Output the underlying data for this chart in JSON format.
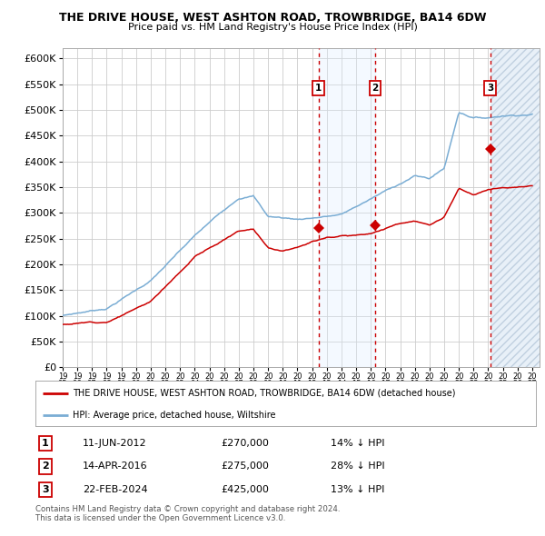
{
  "title": "THE DRIVE HOUSE, WEST ASHTON ROAD, TROWBRIDGE, BA14 6DW",
  "subtitle": "Price paid vs. HM Land Registry's House Price Index (HPI)",
  "legend_house": "THE DRIVE HOUSE, WEST ASHTON ROAD, TROWBRIDGE, BA14 6DW (detached house)",
  "legend_hpi": "HPI: Average price, detached house, Wiltshire",
  "sales": [
    {
      "label": "1",
      "date": "11-JUN-2012",
      "x": 2012.44,
      "price": 270000,
      "pct": "14%",
      "dir": "↓"
    },
    {
      "label": "2",
      "date": "14-APR-2016",
      "x": 2016.28,
      "price": 275000,
      "pct": "28%",
      "dir": "↓"
    },
    {
      "label": "3",
      "date": "22-FEB-2024",
      "x": 2024.13,
      "price": 425000,
      "pct": "13%",
      "dir": "↓"
    }
  ],
  "footnote1": "Contains HM Land Registry data © Crown copyright and database right 2024.",
  "footnote2": "This data is licensed under the Open Government Licence v3.0.",
  "xmin": 1995.0,
  "xmax": 2027.5,
  "ymin": 0,
  "ymax": 620000,
  "yticks": [
    0,
    50000,
    100000,
    150000,
    200000,
    250000,
    300000,
    350000,
    400000,
    450000,
    500000,
    550000,
    600000
  ],
  "bg_color": "#ffffff",
  "grid_color": "#cccccc",
  "house_line_color": "#cc0000",
  "hpi_line_color": "#7aadd4",
  "sale_marker_color": "#cc0000",
  "sale_vline_color": "#cc0000",
  "shade_color": "#ddeeff",
  "hatch_color": "#b0c8d8"
}
